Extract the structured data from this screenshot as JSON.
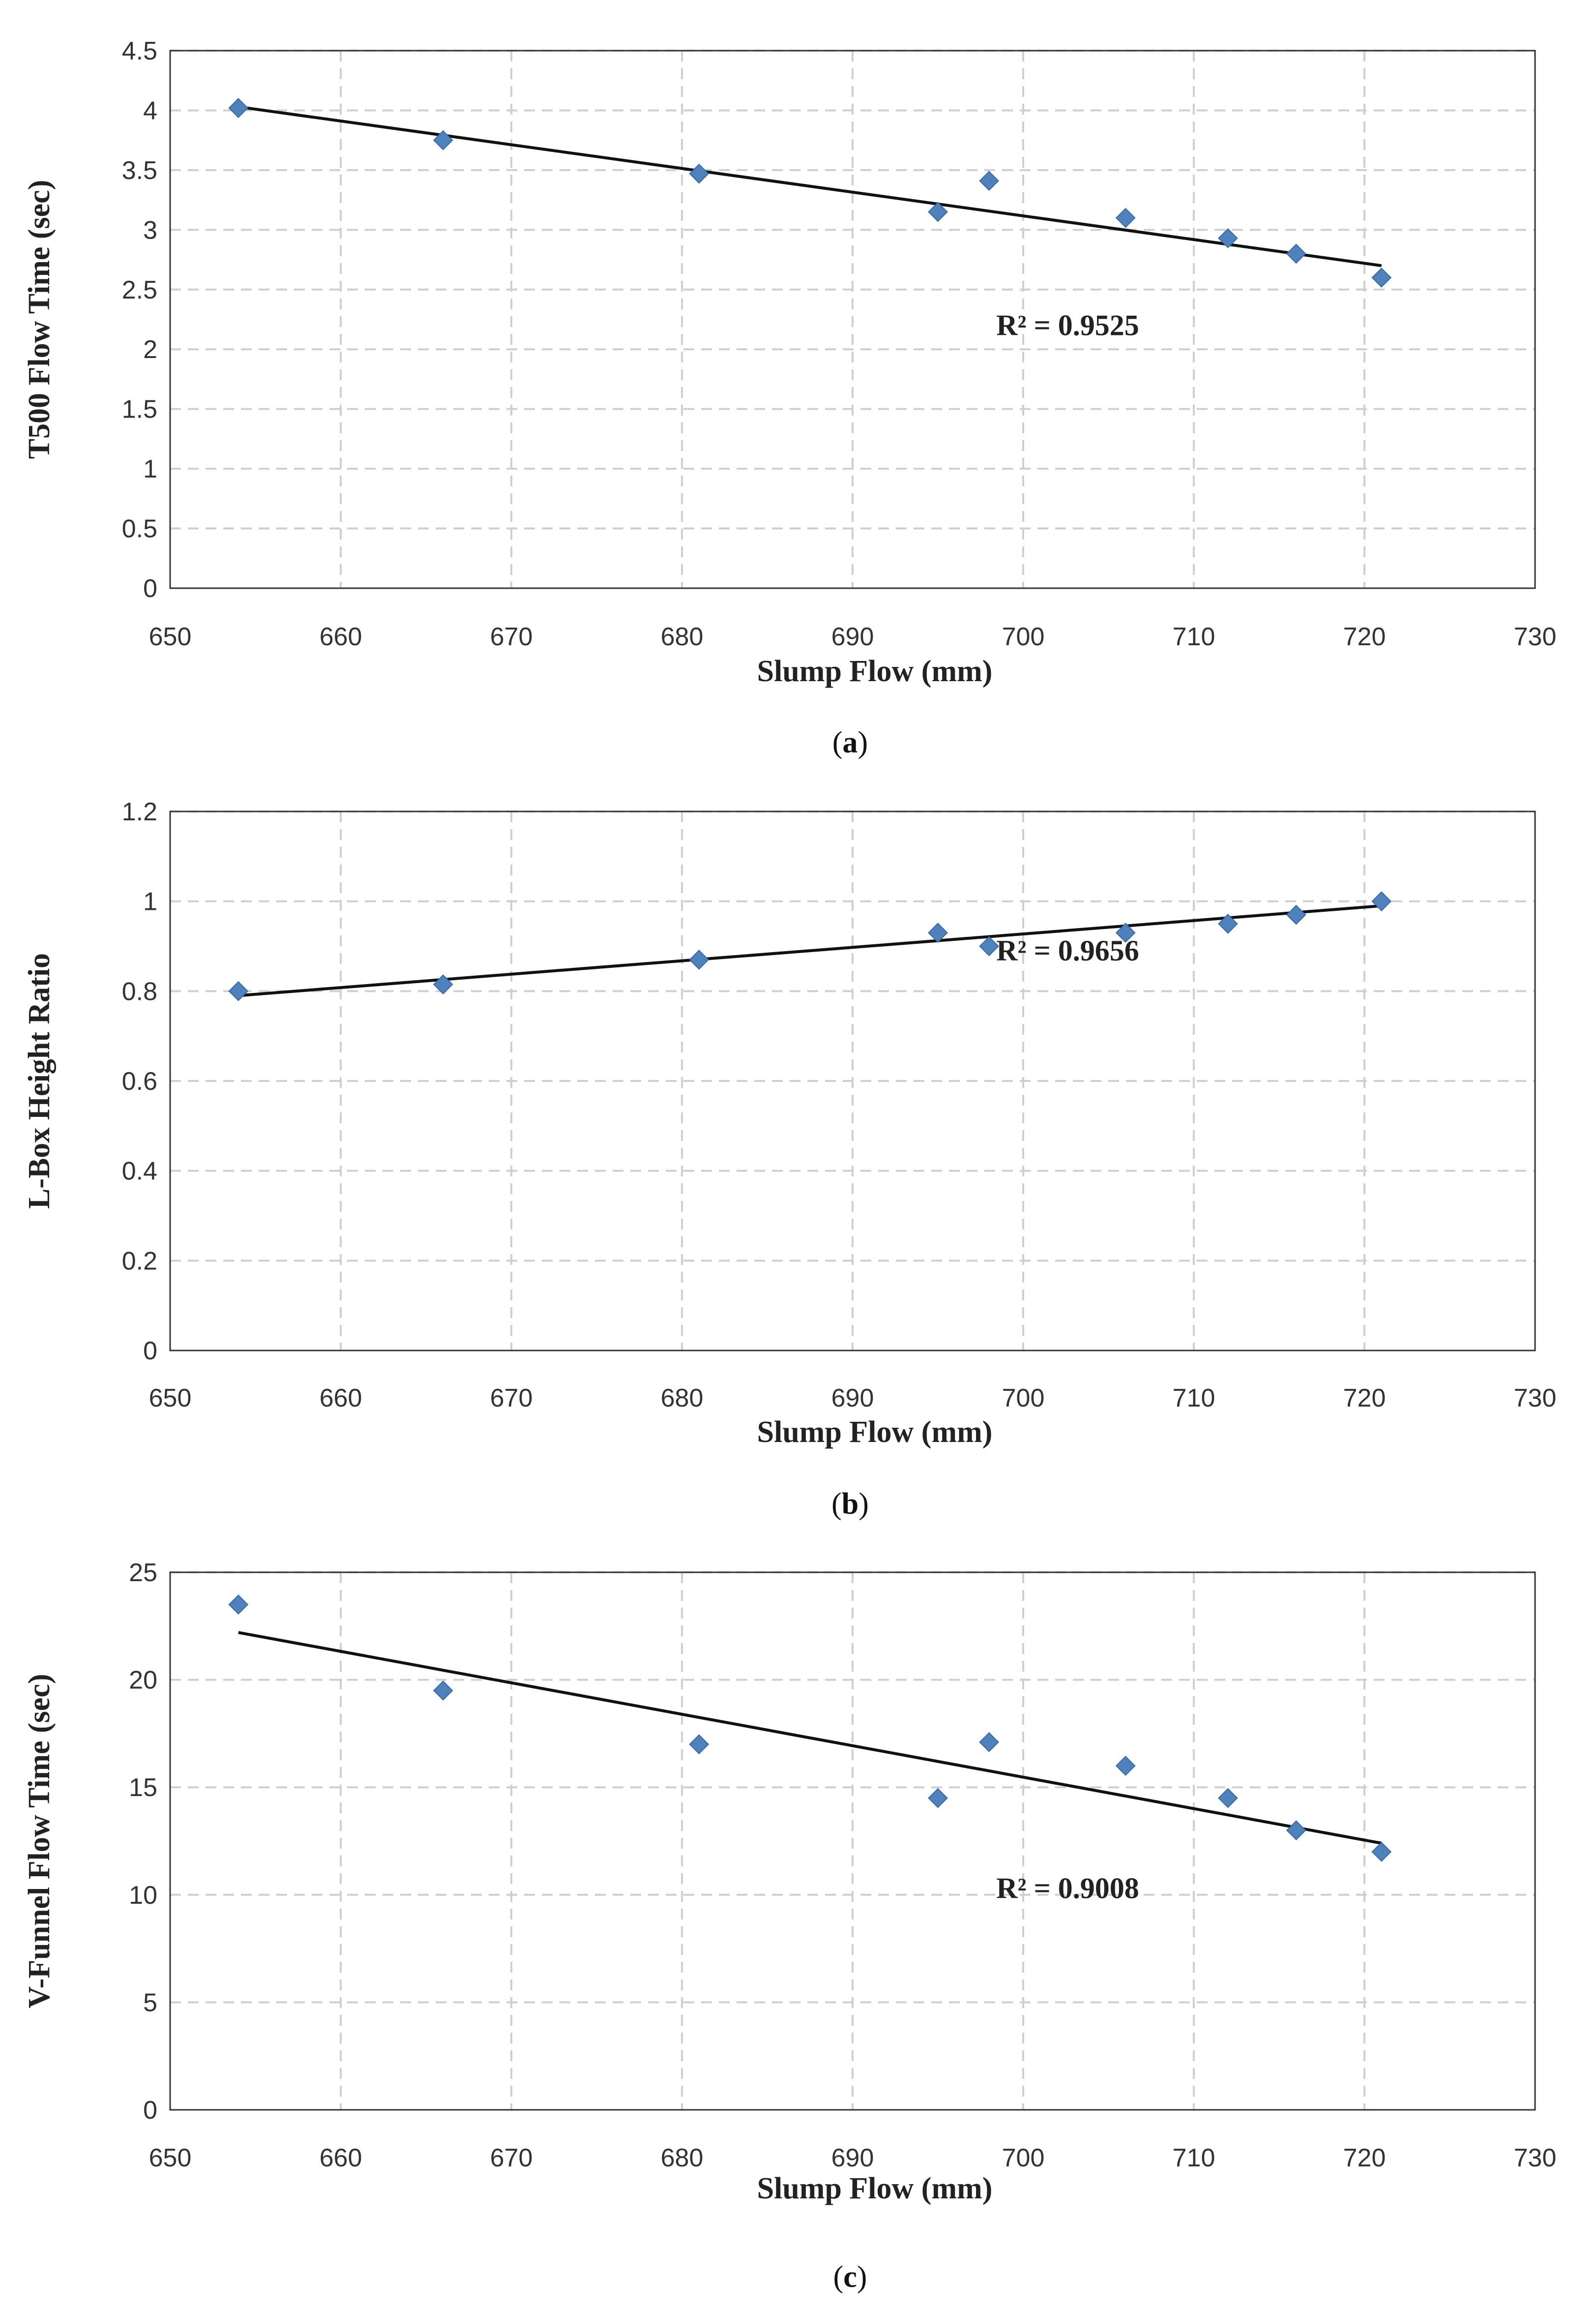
{
  "chart_data": [
    {
      "type": "scatter",
      "id": "a",
      "caption_letter": "a",
      "xlabel": "Slump Flow (mm)",
      "ylabel": "T500 Flow Time (sec)",
      "xlim": [
        650,
        730
      ],
      "xticks": [
        650,
        660,
        670,
        680,
        690,
        700,
        710,
        720,
        730
      ],
      "ylim": [
        0,
        4.5
      ],
      "yticks": [
        0,
        0.5,
        1,
        1.5,
        2,
        2.5,
        3,
        3.5,
        4,
        4.5
      ],
      "grid": true,
      "x": [
        654,
        666,
        681,
        695,
        698,
        706,
        712,
        716,
        721
      ],
      "y": [
        4.02,
        3.75,
        3.47,
        3.15,
        3.41,
        3.1,
        2.93,
        2.8,
        2.6
      ],
      "trendline": {
        "x": [
          654,
          721
        ],
        "y": [
          4.03,
          2.7
        ]
      },
      "r2_label": "R² = 0.9525",
      "r2_anchor": [
        699,
        2.2
      ]
    },
    {
      "type": "scatter",
      "id": "b",
      "caption_letter": "b",
      "xlabel": "Slump Flow (mm)",
      "ylabel": "L-Box Height Ratio",
      "xlim": [
        650,
        730
      ],
      "xticks": [
        650,
        660,
        670,
        680,
        690,
        700,
        710,
        720,
        730
      ],
      "ylim": [
        0,
        1.2
      ],
      "yticks": [
        0,
        0.2,
        0.4,
        0.6,
        0.8,
        1,
        1.2
      ],
      "grid": true,
      "x": [
        654,
        666,
        681,
        695,
        698,
        706,
        712,
        716,
        721
      ],
      "y": [
        0.8,
        0.815,
        0.87,
        0.93,
        0.9,
        0.93,
        0.95,
        0.97,
        1.0
      ],
      "trendline": {
        "x": [
          654,
          721
        ],
        "y": [
          0.79,
          0.99
        ]
      },
      "r2_label": "R² = 0.9656",
      "r2_anchor": [
        699,
        0.89
      ]
    },
    {
      "type": "scatter",
      "id": "c",
      "caption_letter": "c",
      "xlabel": "Slump Flow (mm)",
      "ylabel": "V-Funnel Flow Time (sec)",
      "xlim": [
        650,
        730
      ],
      "xticks": [
        650,
        660,
        670,
        680,
        690,
        700,
        710,
        720,
        730
      ],
      "ylim": [
        0,
        25
      ],
      "yticks": [
        0,
        5,
        10,
        15,
        20,
        25
      ],
      "grid": true,
      "x": [
        654,
        666,
        681,
        695,
        698,
        706,
        712,
        716,
        721
      ],
      "y": [
        23.5,
        19.5,
        17,
        14.5,
        17.1,
        16,
        14.5,
        13,
        12
      ],
      "trendline": {
        "x": [
          654,
          721
        ],
        "y": [
          22.2,
          12.4
        ]
      },
      "r2_label": "R² = 0.9008",
      "r2_anchor": [
        699,
        10.3
      ]
    }
  ],
  "colors": {
    "marker": "#4f81bd",
    "trendline": "#111111",
    "grid": "#cfcfcf",
    "frame": "#333333"
  }
}
